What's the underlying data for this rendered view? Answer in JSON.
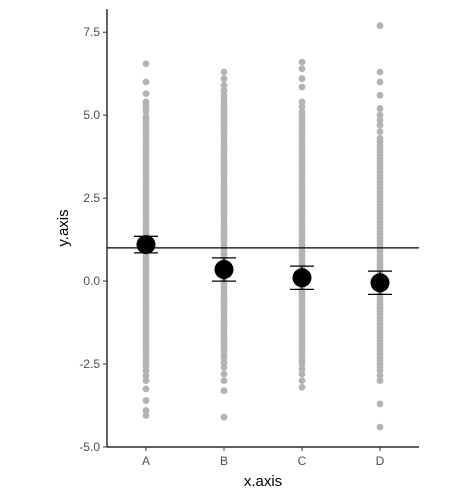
{
  "chart_data": {
    "type": "scatter",
    "title": "",
    "xlabel": "x.axis",
    "ylabel": "y.axis",
    "categories": [
      "A",
      "B",
      "C",
      "D"
    ],
    "ylim": [
      -5.0,
      8.2
    ],
    "y_ticks": [
      -5.0,
      -2.5,
      0.0,
      2.5,
      5.0,
      7.5
    ],
    "y_tick_labels": [
      "-5.0",
      "-2.5",
      "0.0",
      "2.5",
      "5.0",
      "7.5"
    ],
    "grid": false,
    "legend": "none",
    "reference_line": {
      "y": 1.0,
      "color": "#000000"
    },
    "raw_point_color": "#b3b3b3",
    "summary_color": "#000000",
    "summary": [
      {
        "category": "A",
        "mean": 1.1,
        "lower": 0.85,
        "upper": 1.35
      },
      {
        "category": "B",
        "mean": 0.35,
        "lower": 0.0,
        "upper": 0.7
      },
      {
        "category": "C",
        "mean": 0.1,
        "lower": -0.25,
        "upper": 0.45
      },
      {
        "category": "D",
        "mean": -0.05,
        "lower": -0.4,
        "upper": 0.3
      }
    ],
    "raw_points": [
      {
        "category": "A",
        "y": [
          6.55,
          6.0,
          5.65,
          5.4,
          5.3,
          5.2,
          5.1,
          4.95,
          4.9,
          4.8,
          4.7,
          4.6,
          4.5,
          4.4,
          4.3,
          4.2,
          4.1,
          4.0,
          3.9,
          3.8,
          3.7,
          3.6,
          3.5,
          3.4,
          3.3,
          3.2,
          3.1,
          3.0,
          2.9,
          2.8,
          2.7,
          2.6,
          2.5,
          2.4,
          2.3,
          2.2,
          2.1,
          2.0,
          1.9,
          1.8,
          1.7,
          1.6,
          1.5,
          1.4,
          1.3,
          1.2,
          1.1,
          1.0,
          0.9,
          0.8,
          0.7,
          0.6,
          0.5,
          0.4,
          0.3,
          0.2,
          0.1,
          0.0,
          -0.1,
          -0.2,
          -0.3,
          -0.4,
          -0.5,
          -0.6,
          -0.7,
          -0.8,
          -0.9,
          -1.0,
          -1.1,
          -1.2,
          -1.3,
          -1.4,
          -1.5,
          -1.6,
          -1.7,
          -1.8,
          -1.9,
          -2.0,
          -2.1,
          -2.2,
          -2.3,
          -2.4,
          -2.5,
          -2.6,
          -2.7,
          -2.85,
          -3.0,
          -3.25,
          -3.6,
          -3.9,
          -4.05
        ]
      },
      {
        "category": "B",
        "y": [
          6.3,
          6.1,
          5.9,
          5.75,
          5.6,
          5.5,
          5.4,
          5.3,
          5.2,
          5.1,
          5.0,
          4.9,
          4.8,
          4.7,
          4.6,
          4.5,
          4.4,
          4.3,
          4.2,
          4.1,
          4.0,
          3.9,
          3.8,
          3.7,
          3.6,
          3.5,
          3.4,
          3.3,
          3.2,
          3.1,
          3.0,
          2.9,
          2.8,
          2.7,
          2.6,
          2.5,
          2.4,
          2.3,
          2.2,
          2.1,
          2.0,
          1.9,
          1.8,
          1.7,
          1.6,
          1.5,
          1.4,
          1.3,
          1.2,
          1.1,
          1.0,
          0.9,
          0.8,
          0.7,
          0.6,
          0.5,
          0.4,
          0.3,
          0.2,
          0.1,
          0.0,
          -0.1,
          -0.2,
          -0.3,
          -0.4,
          -0.5,
          -0.6,
          -0.7,
          -0.8,
          -0.9,
          -1.0,
          -1.1,
          -1.2,
          -1.3,
          -1.4,
          -1.5,
          -1.6,
          -1.7,
          -1.8,
          -1.9,
          -2.0,
          -2.1,
          -2.2,
          -2.3,
          -2.45,
          -2.6,
          -2.8,
          -3.0,
          -3.3,
          -4.1
        ]
      },
      {
        "category": "C",
        "y": [
          6.6,
          6.4,
          6.1,
          5.85,
          5.4,
          5.25,
          5.1,
          5.0,
          4.9,
          4.8,
          4.7,
          4.6,
          4.5,
          4.4,
          4.3,
          4.2,
          4.1,
          4.0,
          3.9,
          3.8,
          3.7,
          3.6,
          3.5,
          3.4,
          3.3,
          3.2,
          3.1,
          3.0,
          2.9,
          2.8,
          2.7,
          2.6,
          2.5,
          2.4,
          2.3,
          2.2,
          2.1,
          2.0,
          1.9,
          1.8,
          1.7,
          1.6,
          1.5,
          1.4,
          1.3,
          1.2,
          1.1,
          1.0,
          0.9,
          0.8,
          0.7,
          0.6,
          0.5,
          0.4,
          0.3,
          0.2,
          0.1,
          0.0,
          -0.1,
          -0.2,
          -0.3,
          -0.4,
          -0.5,
          -0.6,
          -0.7,
          -0.8,
          -0.9,
          -1.0,
          -1.1,
          -1.2,
          -1.3,
          -1.4,
          -1.5,
          -1.6,
          -1.7,
          -1.8,
          -1.9,
          -2.0,
          -2.1,
          -2.2,
          -2.3,
          -2.4,
          -2.5,
          -2.65,
          -2.8,
          -3.0,
          -3.2
        ]
      },
      {
        "category": "D",
        "y": [
          7.7,
          6.3,
          6.0,
          5.6,
          5.2,
          5.0,
          4.85,
          4.7,
          4.5,
          4.3,
          4.2,
          4.1,
          4.0,
          3.9,
          3.8,
          3.7,
          3.6,
          3.5,
          3.4,
          3.3,
          3.2,
          3.1,
          3.0,
          2.9,
          2.8,
          2.7,
          2.6,
          2.5,
          2.4,
          2.3,
          2.2,
          2.1,
          2.0,
          1.9,
          1.8,
          1.7,
          1.6,
          1.5,
          1.4,
          1.3,
          1.2,
          1.1,
          1.0,
          0.9,
          0.8,
          0.7,
          0.6,
          0.5,
          0.4,
          0.3,
          0.2,
          0.1,
          0.0,
          -0.1,
          -0.2,
          -0.3,
          -0.4,
          -0.5,
          -0.6,
          -0.7,
          -0.8,
          -0.9,
          -1.0,
          -1.1,
          -1.2,
          -1.3,
          -1.4,
          -1.5,
          -1.6,
          -1.7,
          -1.8,
          -1.9,
          -2.0,
          -2.1,
          -2.2,
          -2.3,
          -2.4,
          -2.5,
          -2.6,
          -2.7,
          -2.85,
          -3.0,
          -3.7,
          -4.4
        ]
      }
    ]
  }
}
